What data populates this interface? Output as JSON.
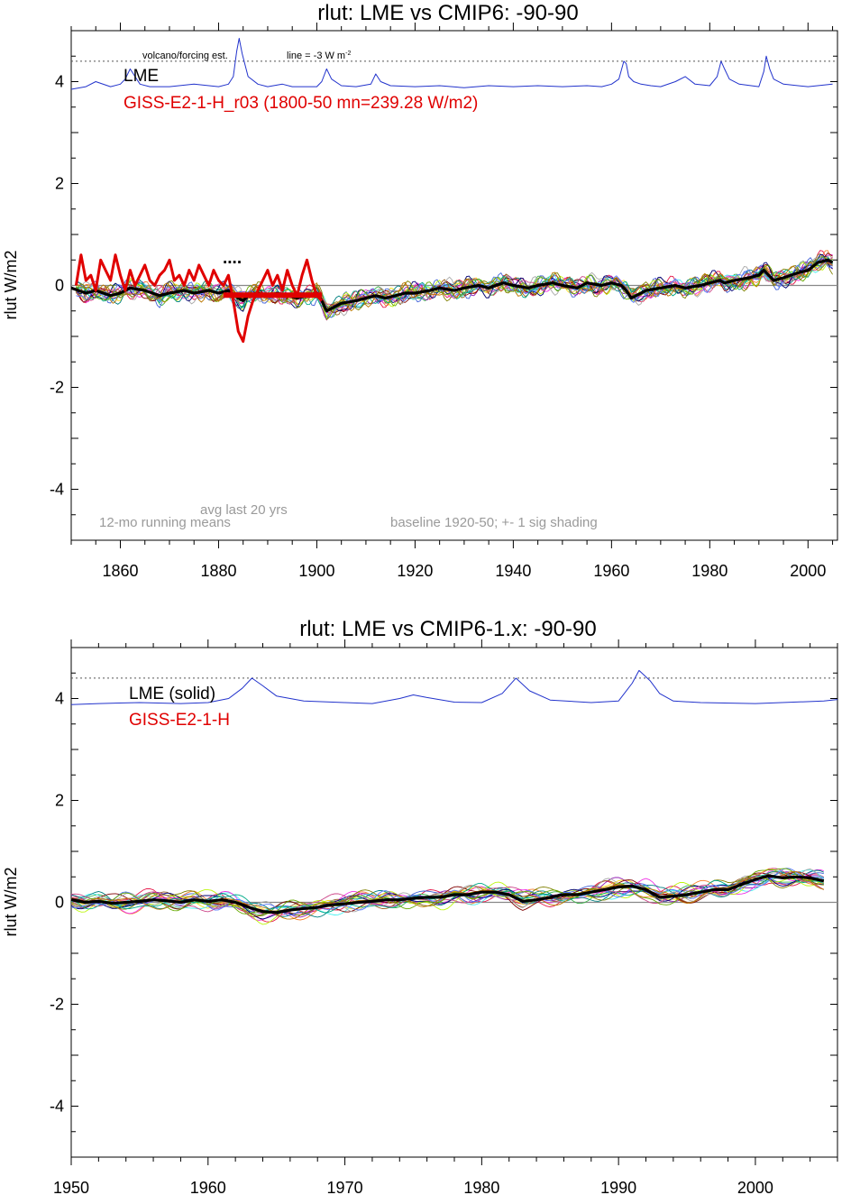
{
  "chart_data": [
    {
      "type": "line",
      "title": "rlut: LME vs CMIP6: -90-90",
      "ylabel": "rlut W/m2",
      "xlim": [
        1850,
        2006
      ],
      "ylim": [
        -5,
        5
      ],
      "xticks": [
        1860,
        1880,
        1900,
        1920,
        1940,
        1960,
        1980,
        2000
      ],
      "yticks": [
        -4,
        -2,
        0,
        2,
        4
      ],
      "grid": false,
      "legend_position": "top-left",
      "legend_entries": [
        {
          "label": "LME",
          "color": "#000000"
        },
        {
          "label": "GISS-E2-1-H_r03 (1800-50 mn=239.28 W/m2)",
          "color": "#e00000"
        }
      ],
      "annotations": {
        "volcano": "volcano/forcing est.",
        "line": "line = -3 W m",
        "line_sup": "-2",
        "dots": "....",
        "avg": "avg last 20 yrs",
        "running": "12-mo running means",
        "baseline": "baseline 1920-50; +- 1 sig shading"
      },
      "reference_lines": [
        {
          "name": "dotted",
          "y": 4.4
        },
        {
          "name": "zero",
          "y": 0
        }
      ],
      "series": [
        {
          "role": "volcanic forcing",
          "color": "#2233cc",
          "x": [
            1850,
            1853,
            1855,
            1858,
            1860,
            1861,
            1862,
            1863,
            1864,
            1866,
            1870,
            1875,
            1880,
            1882,
            1883,
            1883.7,
            1884.2,
            1884.8,
            1886,
            1888,
            1890,
            1893,
            1895,
            1900,
            1901,
            1902,
            1903,
            1905,
            1908,
            1911,
            1912,
            1913,
            1915,
            1920,
            1925,
            1930,
            1935,
            1940,
            1945,
            1950,
            1955,
            1958,
            1960,
            1961.5,
            1962.5,
            1963,
            1963.5,
            1964.5,
            1966,
            1968,
            1970,
            1973,
            1975,
            1977,
            1980,
            1981.5,
            1982.3,
            1983,
            1984,
            1986,
            1990,
            1991,
            1991.5,
            1992.2,
            1993,
            1995,
            2000,
            2005
          ],
          "y": [
            3.85,
            3.9,
            4.0,
            3.9,
            3.95,
            4.05,
            4.25,
            4.1,
            3.95,
            3.9,
            3.9,
            3.95,
            3.9,
            3.95,
            4.1,
            4.6,
            4.85,
            4.55,
            4.1,
            3.95,
            3.9,
            3.95,
            3.9,
            3.9,
            4.0,
            4.25,
            4.05,
            3.92,
            3.9,
            3.95,
            4.15,
            4.0,
            3.92,
            3.9,
            3.92,
            3.88,
            3.92,
            3.9,
            3.92,
            3.9,
            3.92,
            3.9,
            3.95,
            4.05,
            4.4,
            4.35,
            4.1,
            4.0,
            3.95,
            3.92,
            3.9,
            4.0,
            4.1,
            3.95,
            3.92,
            4.1,
            4.4,
            4.25,
            4.05,
            3.95,
            3.9,
            4.2,
            4.5,
            4.25,
            4.05,
            3.95,
            3.9,
            3.95
          ]
        },
        {
          "role": "LME ensemble mean",
          "color": "#000000",
          "x": [
            1850,
            1853,
            1855,
            1858,
            1860,
            1862,
            1865,
            1868,
            1870,
            1873,
            1875,
            1878,
            1880,
            1882,
            1884,
            1885,
            1886,
            1888,
            1890,
            1892,
            1894,
            1896,
            1898,
            1900,
            1901,
            1902,
            1903,
            1905,
            1908,
            1910,
            1912,
            1914,
            1916,
            1918,
            1920,
            1923,
            1925,
            1928,
            1930,
            1933,
            1935,
            1938,
            1940,
            1943,
            1945,
            1948,
            1950,
            1953,
            1955,
            1958,
            1960,
            1962,
            1963,
            1964,
            1965,
            1967,
            1970,
            1973,
            1975,
            1978,
            1980,
            1982,
            1983,
            1985,
            1988,
            1990,
            1991,
            1992,
            1993,
            1995,
            1998,
            2000,
            2002,
            2004,
            2005
          ],
          "y": [
            -0.05,
            -0.15,
            -0.1,
            -0.2,
            -0.15,
            -0.05,
            -0.1,
            -0.2,
            -0.15,
            -0.1,
            -0.15,
            -0.1,
            -0.15,
            -0.1,
            -0.25,
            -0.3,
            -0.2,
            -0.15,
            -0.2,
            -0.15,
            -0.2,
            -0.25,
            -0.2,
            -0.15,
            -0.3,
            -0.5,
            -0.45,
            -0.35,
            -0.3,
            -0.25,
            -0.2,
            -0.25,
            -0.2,
            -0.15,
            -0.15,
            -0.1,
            -0.05,
            -0.1,
            -0.05,
            0.0,
            -0.05,
            0.05,
            0.0,
            -0.05,
            0.0,
            0.05,
            0.0,
            -0.05,
            0.05,
            0.0,
            0.05,
            0.0,
            -0.1,
            -0.25,
            -0.2,
            -0.1,
            -0.05,
            0.0,
            -0.05,
            0.0,
            0.05,
            0.1,
            0.05,
            0.1,
            0.15,
            0.2,
            0.3,
            0.2,
            0.1,
            0.15,
            0.25,
            0.3,
            0.45,
            0.5,
            0.45
          ]
        },
        {
          "role": "GISS-E2-1-H_r03",
          "color": "#e00000",
          "x": [
            1851,
            1852,
            1853,
            1854,
            1855,
            1856,
            1857,
            1858,
            1859,
            1860,
            1861,
            1862,
            1863,
            1864,
            1865,
            1866,
            1867,
            1868,
            1869,
            1870,
            1871,
            1872,
            1873,
            1874,
            1875,
            1876,
            1877,
            1878,
            1879,
            1880,
            1881,
            1882,
            1883,
            1884,
            1885,
            1886,
            1887,
            1888,
            1889,
            1890,
            1891,
            1892,
            1893,
            1894,
            1895,
            1896,
            1897,
            1898,
            1899,
            1900,
            1901
          ],
          "y": [
            0.0,
            0.6,
            0.1,
            0.2,
            -0.1,
            0.5,
            0.3,
            0.1,
            0.6,
            0.2,
            -0.1,
            0.3,
            0.0,
            0.2,
            0.4,
            0.1,
            0.0,
            0.2,
            0.3,
            0.5,
            0.1,
            0.2,
            0.0,
            0.3,
            0.1,
            0.4,
            0.2,
            0.0,
            0.3,
            0.1,
            0.0,
            0.2,
            -0.3,
            -0.9,
            -1.1,
            -0.6,
            -0.3,
            -0.1,
            0.1,
            0.3,
            0.0,
            0.2,
            -0.1,
            0.3,
            0.0,
            -0.2,
            0.2,
            0.5,
            0.1,
            -0.2,
            -0.3
          ]
        },
        {
          "role": "avg last 20 yrs",
          "color": "#e00000",
          "x": [
            1881,
            1901
          ],
          "y": [
            -0.19,
            -0.19
          ]
        }
      ]
    },
    {
      "type": "line",
      "title": "rlut: LME vs CMIP6-1.x: -90-90",
      "ylabel": "rlut W/m2",
      "xlim": [
        1950,
        2006
      ],
      "ylim": [
        -5,
        5
      ],
      "xticks": [
        1950,
        1960,
        1970,
        1980,
        1990,
        2000
      ],
      "yticks": [
        -4,
        -2,
        0,
        2,
        4
      ],
      "grid": false,
      "legend_position": "top-left",
      "legend_entries": [
        {
          "label": "LME (solid)",
          "color": "#000000"
        },
        {
          "label": "GISS-E2-1-H",
          "color": "#e00000"
        }
      ],
      "reference_lines": [
        {
          "name": "dotted",
          "y": 4.4
        },
        {
          "name": "zero",
          "y": 0
        }
      ],
      "series": [
        {
          "role": "volcanic forcing",
          "color": "#2233cc",
          "x": [
            1950,
            1952,
            1955,
            1958,
            1960,
            1961.5,
            1962.5,
            1963.2,
            1964,
            1965,
            1967,
            1970,
            1972,
            1974,
            1975,
            1976,
            1978,
            1980,
            1981.5,
            1982.5,
            1983.5,
            1985,
            1988,
            1990,
            1991,
            1991.5,
            1992.3,
            1993,
            1994,
            1996,
            2000,
            2005,
            2006
          ],
          "y": [
            3.88,
            3.9,
            3.92,
            3.9,
            3.92,
            4.0,
            4.2,
            4.4,
            4.25,
            4.05,
            3.95,
            3.92,
            3.9,
            4.0,
            4.07,
            4.02,
            3.93,
            3.92,
            4.1,
            4.4,
            4.15,
            3.97,
            3.92,
            3.95,
            4.3,
            4.55,
            4.35,
            4.1,
            3.95,
            3.92,
            3.9,
            3.95,
            3.98
          ]
        },
        {
          "role": "LME ensemble mean",
          "color": "#000000",
          "x": [
            1950,
            1951,
            1952,
            1953,
            1954,
            1955,
            1956,
            1957,
            1958,
            1959,
            1960,
            1961,
            1962,
            1963,
            1964,
            1965,
            1966,
            1967,
            1968,
            1969,
            1970,
            1971,
            1972,
            1973,
            1974,
            1975,
            1976,
            1977,
            1978,
            1979,
            1980,
            1981,
            1982,
            1983,
            1984,
            1985,
            1986,
            1987,
            1988,
            1989,
            1990,
            1991,
            1992,
            1993,
            1994,
            1995,
            1996,
            1997,
            1998,
            1999,
            2000,
            2001,
            2002,
            2003,
            2004,
            2005
          ],
          "y": [
            0.05,
            0.0,
            0.02,
            -0.02,
            0.0,
            0.02,
            0.05,
            0.03,
            0.0,
            0.05,
            0.02,
            0.05,
            0.0,
            -0.1,
            -0.18,
            -0.2,
            -0.15,
            -0.12,
            -0.1,
            -0.05,
            -0.03,
            0.0,
            0.02,
            0.05,
            0.05,
            0.08,
            0.1,
            0.1,
            0.15,
            0.15,
            0.2,
            0.2,
            0.15,
            0.02,
            0.05,
            0.1,
            0.15,
            0.15,
            0.2,
            0.25,
            0.3,
            0.32,
            0.25,
            0.1,
            0.12,
            0.15,
            0.2,
            0.25,
            0.25,
            0.35,
            0.45,
            0.52,
            0.48,
            0.5,
            0.48,
            0.42
          ]
        }
      ]
    }
  ]
}
